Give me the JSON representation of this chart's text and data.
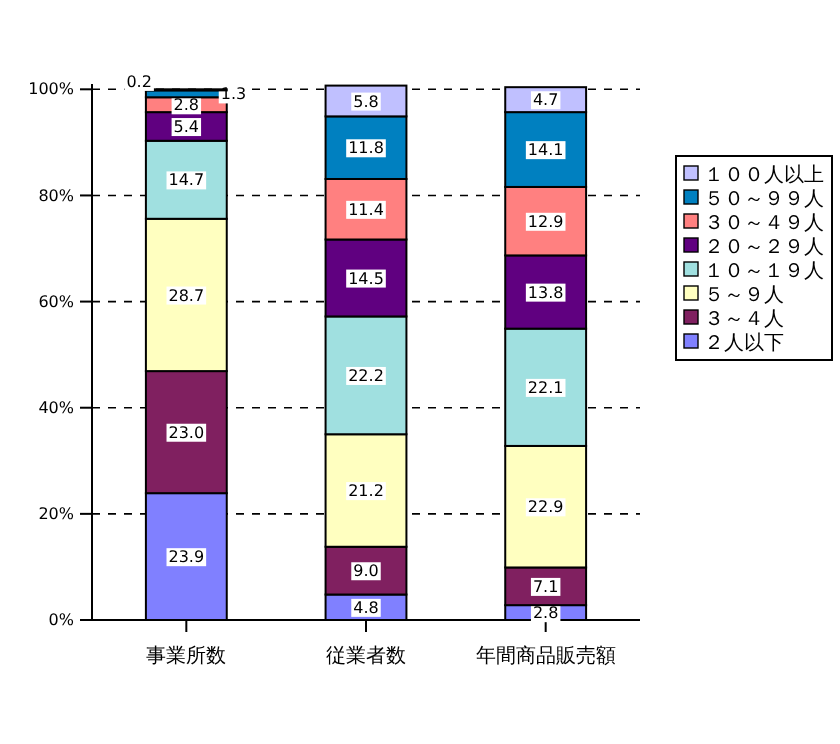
{
  "chart_data": {
    "type": "bar",
    "stacked": true,
    "categories": [
      "事業所数",
      "従業者数",
      "年間商品販売額"
    ],
    "ylim": [
      0,
      101
    ],
    "yticks": [
      {
        "value": 0,
        "label": "0%"
      },
      {
        "value": 20,
        "label": "20%"
      },
      {
        "value": 40,
        "label": "40%"
      },
      {
        "value": 60,
        "label": "60%"
      },
      {
        "value": 80,
        "label": "80%"
      },
      {
        "value": 100,
        "label": "100%"
      }
    ],
    "grid": "y",
    "legend": "right",
    "series": [
      {
        "name": "２人以下",
        "color": "#8080ff",
        "values": [
          23.9,
          4.8,
          2.8
        ],
        "value_labels": [
          "23.9",
          "4.8",
          "2.8"
        ]
      },
      {
        "name": "３～４人",
        "color": "#802060",
        "values": [
          23.0,
          9.0,
          7.1
        ],
        "value_labels": [
          "23.0",
          "9.0",
          "7.1"
        ]
      },
      {
        "name": "５～９人",
        "color": "#ffffc0",
        "values": [
          28.7,
          21.2,
          22.9
        ],
        "value_labels": [
          "28.7",
          "21.2",
          "22.9"
        ]
      },
      {
        "name": "１０～１９人",
        "color": "#a0e0e0",
        "values": [
          14.7,
          22.2,
          22.1
        ],
        "value_labels": [
          "14.7",
          "22.2",
          "22.1"
        ]
      },
      {
        "name": "２０～２９人",
        "color": "#600080",
        "values": [
          5.4,
          14.5,
          13.8
        ],
        "value_labels": [
          "5.4",
          "14.5",
          "13.8"
        ]
      },
      {
        "name": "３０～４９人",
        "color": "#ff8080",
        "values": [
          2.8,
          11.4,
          12.9
        ],
        "value_labels": [
          "2.8",
          "11.4",
          "12.9"
        ]
      },
      {
        "name": "５０～９９人",
        "color": "#0080c0",
        "values": [
          1.3,
          11.8,
          14.1
        ],
        "value_labels": [
          "1.3",
          "11.8",
          "14.1"
        ]
      },
      {
        "name": "１００人以上",
        "color": "#c0c0ff",
        "values": [
          0.2,
          5.8,
          4.7
        ],
        "value_labels": [
          "0.2",
          "5.8",
          "4.7"
        ]
      }
    ]
  }
}
